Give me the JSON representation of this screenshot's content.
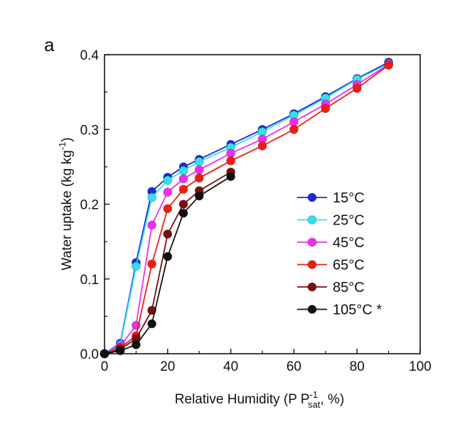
{
  "panel_label": "a",
  "colors": {
    "15°C": "#1c2ad8",
    "25°C": "#33e0ee",
    "45°C": "#ef2ef0",
    "65°C": "#ee1d14",
    "85°C": "#7a0e0e",
    "105°C *": "#111111"
  },
  "chart_data": {
    "type": "line",
    "xlabel_main": "Relative Humidity (P P",
    "xlabel_sup": "-1",
    "xlabel_sub": "sat",
    "xlabel_tail": ", %)",
    "ylabel_main": "Water uptake (kg kg",
    "ylabel_sup": "-1",
    "ylabel_tail": ")",
    "xlim": [
      0,
      100
    ],
    "ylim": [
      0,
      0.4
    ],
    "xticks": [
      0,
      20,
      40,
      60,
      80,
      100
    ],
    "xtick_labels": [
      "0",
      "20",
      "40",
      "60",
      "80",
      "100"
    ],
    "yticks": [
      0,
      0.1,
      0.2,
      0.3,
      0.4
    ],
    "ytick_labels": [
      "0.0",
      "0.1",
      "0.2",
      "0.3",
      "0.4"
    ],
    "grid": false,
    "legend_position": "right",
    "series": [
      {
        "name": "15°C",
        "x": [
          0,
          5,
          10,
          15,
          20,
          25,
          30,
          40,
          50,
          60,
          70,
          80,
          90
        ],
        "y": [
          0,
          0.014,
          0.122,
          0.217,
          0.236,
          0.25,
          0.26,
          0.28,
          0.3,
          0.321,
          0.344,
          0.368,
          0.39
        ]
      },
      {
        "name": "25°C",
        "x": [
          0,
          5,
          10,
          15,
          20,
          25,
          30,
          40,
          50,
          60,
          70,
          80,
          90
        ],
        "y": [
          0,
          0.012,
          0.117,
          0.209,
          0.232,
          0.245,
          0.257,
          0.276,
          0.297,
          0.319,
          0.342,
          0.367,
          0.388
        ]
      },
      {
        "name": "45°C",
        "x": [
          0,
          5,
          10,
          15,
          20,
          25,
          30,
          40,
          50,
          60,
          70,
          80,
          90
        ],
        "y": [
          0,
          0.01,
          0.038,
          0.172,
          0.216,
          0.234,
          0.246,
          0.268,
          0.287,
          0.31,
          0.334,
          0.36,
          0.387
        ]
      },
      {
        "name": "65°C",
        "x": [
          0,
          5,
          10,
          15,
          20,
          25,
          30,
          40,
          50,
          60,
          70,
          80,
          90
        ],
        "y": [
          0,
          0.008,
          0.024,
          0.12,
          0.194,
          0.22,
          0.235,
          0.258,
          0.278,
          0.3,
          0.328,
          0.355,
          0.386
        ]
      },
      {
        "name": "85°C",
        "x": [
          0,
          5,
          10,
          15,
          20,
          25,
          30,
          40
        ],
        "y": [
          0,
          0.006,
          0.02,
          0.058,
          0.16,
          0.2,
          0.218,
          0.243
        ]
      },
      {
        "name": "105°C *",
        "x": [
          0,
          5,
          10,
          15,
          20,
          25,
          30,
          40
        ],
        "y": [
          0,
          0.004,
          0.012,
          0.04,
          0.13,
          0.188,
          0.211,
          0.237
        ]
      }
    ]
  }
}
